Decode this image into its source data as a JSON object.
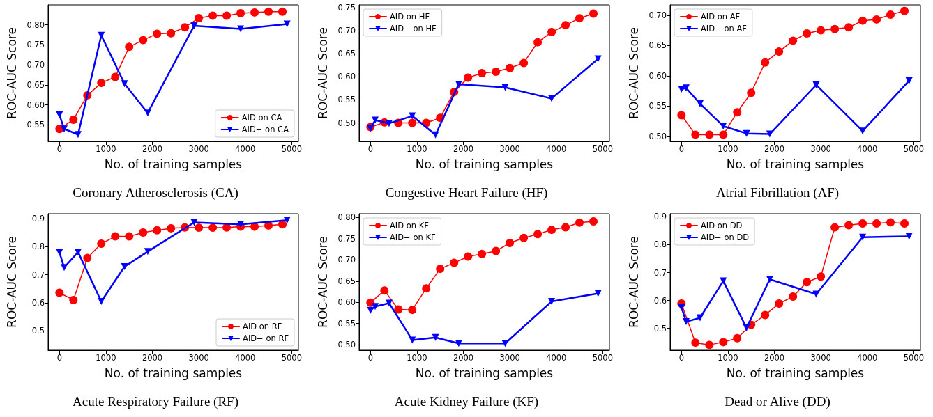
{
  "chart_data": [
    {
      "type": "line",
      "title": "Coronary Atherosclerosis (CA)",
      "xlabel": "No. of training samples",
      "ylabel": "ROC-AUC Score",
      "xlim": [
        -245,
        5145
      ],
      "xticks": [
        0,
        1000,
        2000,
        3000,
        4000,
        5000
      ],
      "ylim": [
        0.509,
        0.85
      ],
      "yticks": [
        0.55,
        {
          "value": 0.6,
          "label": "0.60"
        },
        0.65,
        {
          "value": 0.7,
          "label": "0.70"
        },
        0.75,
        {
          "value": 0.8,
          "label": "0.80"
        }
      ],
      "grid": false,
      "legend": "bottom right",
      "series": [
        {
          "name": "AID on CA",
          "color": "#ff0000",
          "marker": "circle",
          "x": [
            0,
            300,
            600,
            900,
            1200,
            1500,
            1800,
            2100,
            2400,
            2700,
            3000,
            3300,
            3600,
            3900,
            4200,
            4500,
            4800
          ],
          "values": [
            0.54,
            0.563,
            0.624,
            0.655,
            0.67,
            0.745,
            0.762,
            0.778,
            0.779,
            0.794,
            0.817,
            0.823,
            0.823,
            0.829,
            0.831,
            0.833,
            0.833
          ]
        },
        {
          "name": "AID− on CA",
          "color": "#0000ff",
          "marker": "triangle_down",
          "x": [
            0,
            100,
            400,
            900,
            1400,
            1900,
            2900,
            3900,
            4900
          ],
          "values": [
            0.575,
            0.54,
            0.526,
            0.774,
            0.653,
            0.58,
            0.798,
            0.79,
            0.802
          ]
        }
      ]
    },
    {
      "type": "line",
      "title": "Congestive Heart Failure (HF)",
      "xlabel": "No. of training samples",
      "ylabel": "ROC-AUC Score",
      "xlim": [
        -245,
        5145
      ],
      "xticks": [
        0,
        1000,
        2000,
        3000,
        4000,
        5000
      ],
      "ylim": [
        0.46,
        0.756
      ],
      "yticks": [
        {
          "value": 0.5,
          "label": "0.50"
        },
        0.55,
        {
          "value": 0.6,
          "label": "0.60"
        },
        0.65,
        {
          "value": 0.7,
          "label": "0.70"
        },
        0.75
      ],
      "grid": false,
      "legend": "top left",
      "series": [
        {
          "name": "AID on HF",
          "color": "#ff0000",
          "marker": "circle",
          "x": [
            0,
            300,
            600,
            900,
            1200,
            1500,
            1800,
            2100,
            2400,
            2700,
            3000,
            3300,
            3600,
            3900,
            4200,
            4500,
            4800
          ],
          "values": [
            0.491,
            0.501,
            0.5,
            0.5,
            0.5,
            0.511,
            0.567,
            0.598,
            0.608,
            0.611,
            0.619,
            0.63,
            0.675,
            0.697,
            0.712,
            0.727,
            0.737
          ]
        },
        {
          "name": "AID− on HF",
          "color": "#0000ff",
          "marker": "triangle_down",
          "x": [
            0,
            100,
            400,
            900,
            1400,
            1900,
            2900,
            3900,
            4900
          ],
          "values": [
            0.488,
            0.506,
            0.499,
            0.515,
            0.474,
            0.584,
            0.577,
            0.553,
            0.639
          ]
        }
      ]
    },
    {
      "type": "line",
      "title": "Atrial Fibrillation (AF)",
      "xlabel": "No. of training samples",
      "ylabel": "ROC-AUC Score",
      "xlim": [
        -245,
        5145
      ],
      "xticks": [
        0,
        1000,
        2000,
        3000,
        4000,
        5000
      ],
      "ylim": [
        0.492,
        0.717
      ],
      "yticks": [
        {
          "value": 0.5,
          "label": "0.50"
        },
        0.55,
        {
          "value": 0.6,
          "label": "0.60"
        },
        0.65,
        {
          "value": 0.7,
          "label": "0.70"
        }
      ],
      "grid": false,
      "legend": "top left",
      "series": [
        {
          "name": "AID on AF",
          "color": "#ff0000",
          "marker": "circle",
          "x": [
            0,
            300,
            600,
            900,
            1200,
            1500,
            1800,
            2100,
            2400,
            2700,
            3000,
            3300,
            3600,
            3900,
            4200,
            4500,
            4800
          ],
          "values": [
            0.535,
            0.503,
            0.503,
            0.503,
            0.54,
            0.572,
            0.622,
            0.64,
            0.658,
            0.67,
            0.675,
            0.677,
            0.68,
            0.691,
            0.693,
            0.701,
            0.707
          ]
        },
        {
          "name": "AID− on AF",
          "color": "#0000ff",
          "marker": "triangle_down",
          "x": [
            0,
            100,
            400,
            900,
            1400,
            1900,
            2900,
            3900,
            4900
          ],
          "values": [
            0.578,
            0.58,
            0.554,
            0.517,
            0.505,
            0.504,
            0.585,
            0.509,
            0.592
          ]
        }
      ]
    },
    {
      "type": "line",
      "title": "Acute Respiratory Failure (RF)",
      "xlabel": "No. of training samples",
      "ylabel": "ROC-AUC Score",
      "xlim": [
        -245,
        5145
      ],
      "xticks": [
        0,
        1000,
        2000,
        3000,
        4000,
        5000
      ],
      "ylim": [
        0.431,
        0.918
      ],
      "yticks": [
        0.5,
        0.6,
        0.7,
        0.8,
        0.9
      ],
      "grid": false,
      "legend": "bottom right",
      "series": [
        {
          "name": "AID on RF",
          "color": "#ff0000",
          "marker": "circle",
          "x": [
            0,
            300,
            600,
            900,
            1200,
            1500,
            1800,
            2100,
            2400,
            2700,
            3000,
            3300,
            3600,
            3900,
            4200,
            4500,
            4800
          ],
          "values": [
            0.636,
            0.61,
            0.76,
            0.811,
            0.837,
            0.837,
            0.851,
            0.859,
            0.866,
            0.869,
            0.868,
            0.868,
            0.869,
            0.872,
            0.872,
            0.876,
            0.88
          ]
        },
        {
          "name": "AID− on RF",
          "color": "#0000ff",
          "marker": "triangle_down",
          "x": [
            0,
            100,
            400,
            900,
            1400,
            1900,
            2900,
            3900,
            4900
          ],
          "values": [
            0.78,
            0.726,
            0.781,
            0.605,
            0.729,
            0.783,
            0.887,
            0.88,
            0.895
          ]
        }
      ]
    },
    {
      "type": "line",
      "title": "Acute Kidney Failure (KF)",
      "xlabel": "No. of training samples",
      "ylabel": "ROC-AUC Score",
      "xlim": [
        -245,
        5145
      ],
      "xticks": [
        0,
        1000,
        2000,
        3000,
        4000,
        5000
      ],
      "ylim": [
        0.487,
        0.809
      ],
      "yticks": [
        {
          "value": 0.5,
          "label": "0.50"
        },
        0.55,
        {
          "value": 0.6,
          "label": "0.60"
        },
        0.65,
        {
          "value": 0.7,
          "label": "0.70"
        },
        0.75,
        {
          "value": 0.8,
          "label": "0.80"
        }
      ],
      "grid": false,
      "legend": "top left",
      "series": [
        {
          "name": "AID on KF",
          "color": "#ff0000",
          "marker": "circle",
          "x": [
            0,
            300,
            600,
            900,
            1200,
            1500,
            1800,
            2100,
            2400,
            2700,
            3000,
            3300,
            3600,
            3900,
            4200,
            4500,
            4800
          ],
          "values": [
            0.599,
            0.628,
            0.583,
            0.582,
            0.633,
            0.679,
            0.693,
            0.708,
            0.714,
            0.721,
            0.74,
            0.752,
            0.761,
            0.771,
            0.777,
            0.788,
            0.791
          ]
        },
        {
          "name": "AID− on KF",
          "color": "#0000ff",
          "marker": "triangle_down",
          "x": [
            0,
            100,
            400,
            900,
            1400,
            1900,
            2900,
            3900,
            4900
          ],
          "values": [
            0.581,
            0.59,
            0.598,
            0.511,
            0.517,
            0.503,
            0.503,
            0.602,
            0.621
          ]
        }
      ]
    },
    {
      "type": "line",
      "title": "Dead or Alive (DD)",
      "xlabel": "No. of training samples",
      "ylabel": "ROC-AUC Score",
      "xlim": [
        -245,
        5145
      ],
      "xticks": [
        0,
        1000,
        2000,
        3000,
        4000,
        5000
      ],
      "ylim": [
        0.422,
        0.911
      ],
      "yticks": [
        0.5,
        0.6,
        0.7,
        0.8,
        0.9
      ],
      "grid": false,
      "legend": "top left",
      "series": [
        {
          "name": "AID on DD",
          "color": "#ff0000",
          "marker": "circle",
          "x": [
            0,
            300,
            600,
            900,
            1200,
            1500,
            1800,
            2100,
            2400,
            2700,
            3000,
            3300,
            3600,
            3900,
            4200,
            4500,
            4800
          ],
          "values": [
            0.589,
            0.449,
            0.441,
            0.451,
            0.465,
            0.513,
            0.548,
            0.589,
            0.614,
            0.666,
            0.686,
            0.862,
            0.87,
            0.876,
            0.876,
            0.88,
            0.876
          ]
        },
        {
          "name": "AID− on DD",
          "color": "#0000ff",
          "marker": "triangle_down",
          "x": [
            0,
            100,
            400,
            900,
            1400,
            1900,
            2900,
            3900,
            4900
          ],
          "values": [
            0.575,
            0.524,
            0.538,
            0.67,
            0.502,
            0.676,
            0.623,
            0.827,
            0.83
          ]
        }
      ]
    }
  ]
}
